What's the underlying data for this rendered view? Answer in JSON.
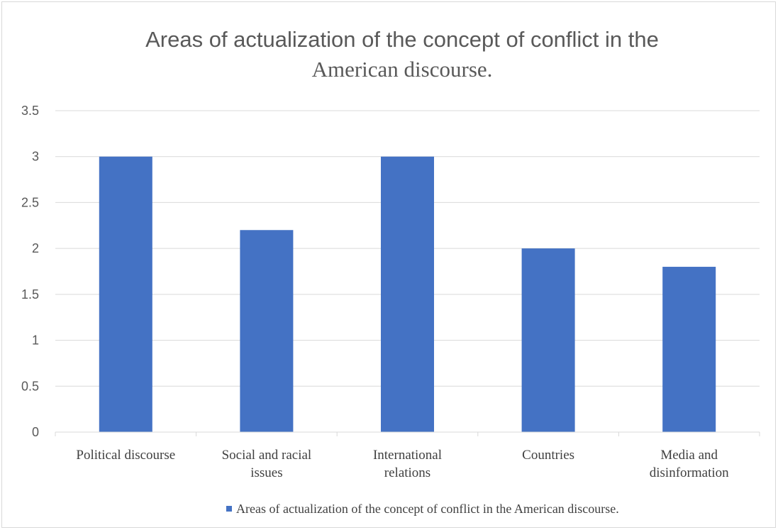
{
  "chart_data": {
    "type": "bar",
    "title_line1": "Areas of actualization of the concept of conflict in the",
    "title_line2": "American discourse.",
    "categories": [
      [
        "Political discourse"
      ],
      [
        "Social and racial",
        "issues"
      ],
      [
        "International",
        "relations"
      ],
      [
        "Countries"
      ],
      [
        "Media and",
        "disinformation"
      ]
    ],
    "series": [
      {
        "name": "Areas of actualization of the concept of conflict in the American discourse.",
        "values": [
          3.0,
          2.2,
          3.0,
          2.0,
          1.8
        ],
        "color": "#4472c4"
      }
    ],
    "yticks": [
      "0",
      "0.5",
      "1",
      "1.5",
      "2",
      "2.5",
      "3",
      "3.5"
    ],
    "ylim": [
      0,
      3.5
    ],
    "grid": true,
    "legend_position": "bottom"
  }
}
